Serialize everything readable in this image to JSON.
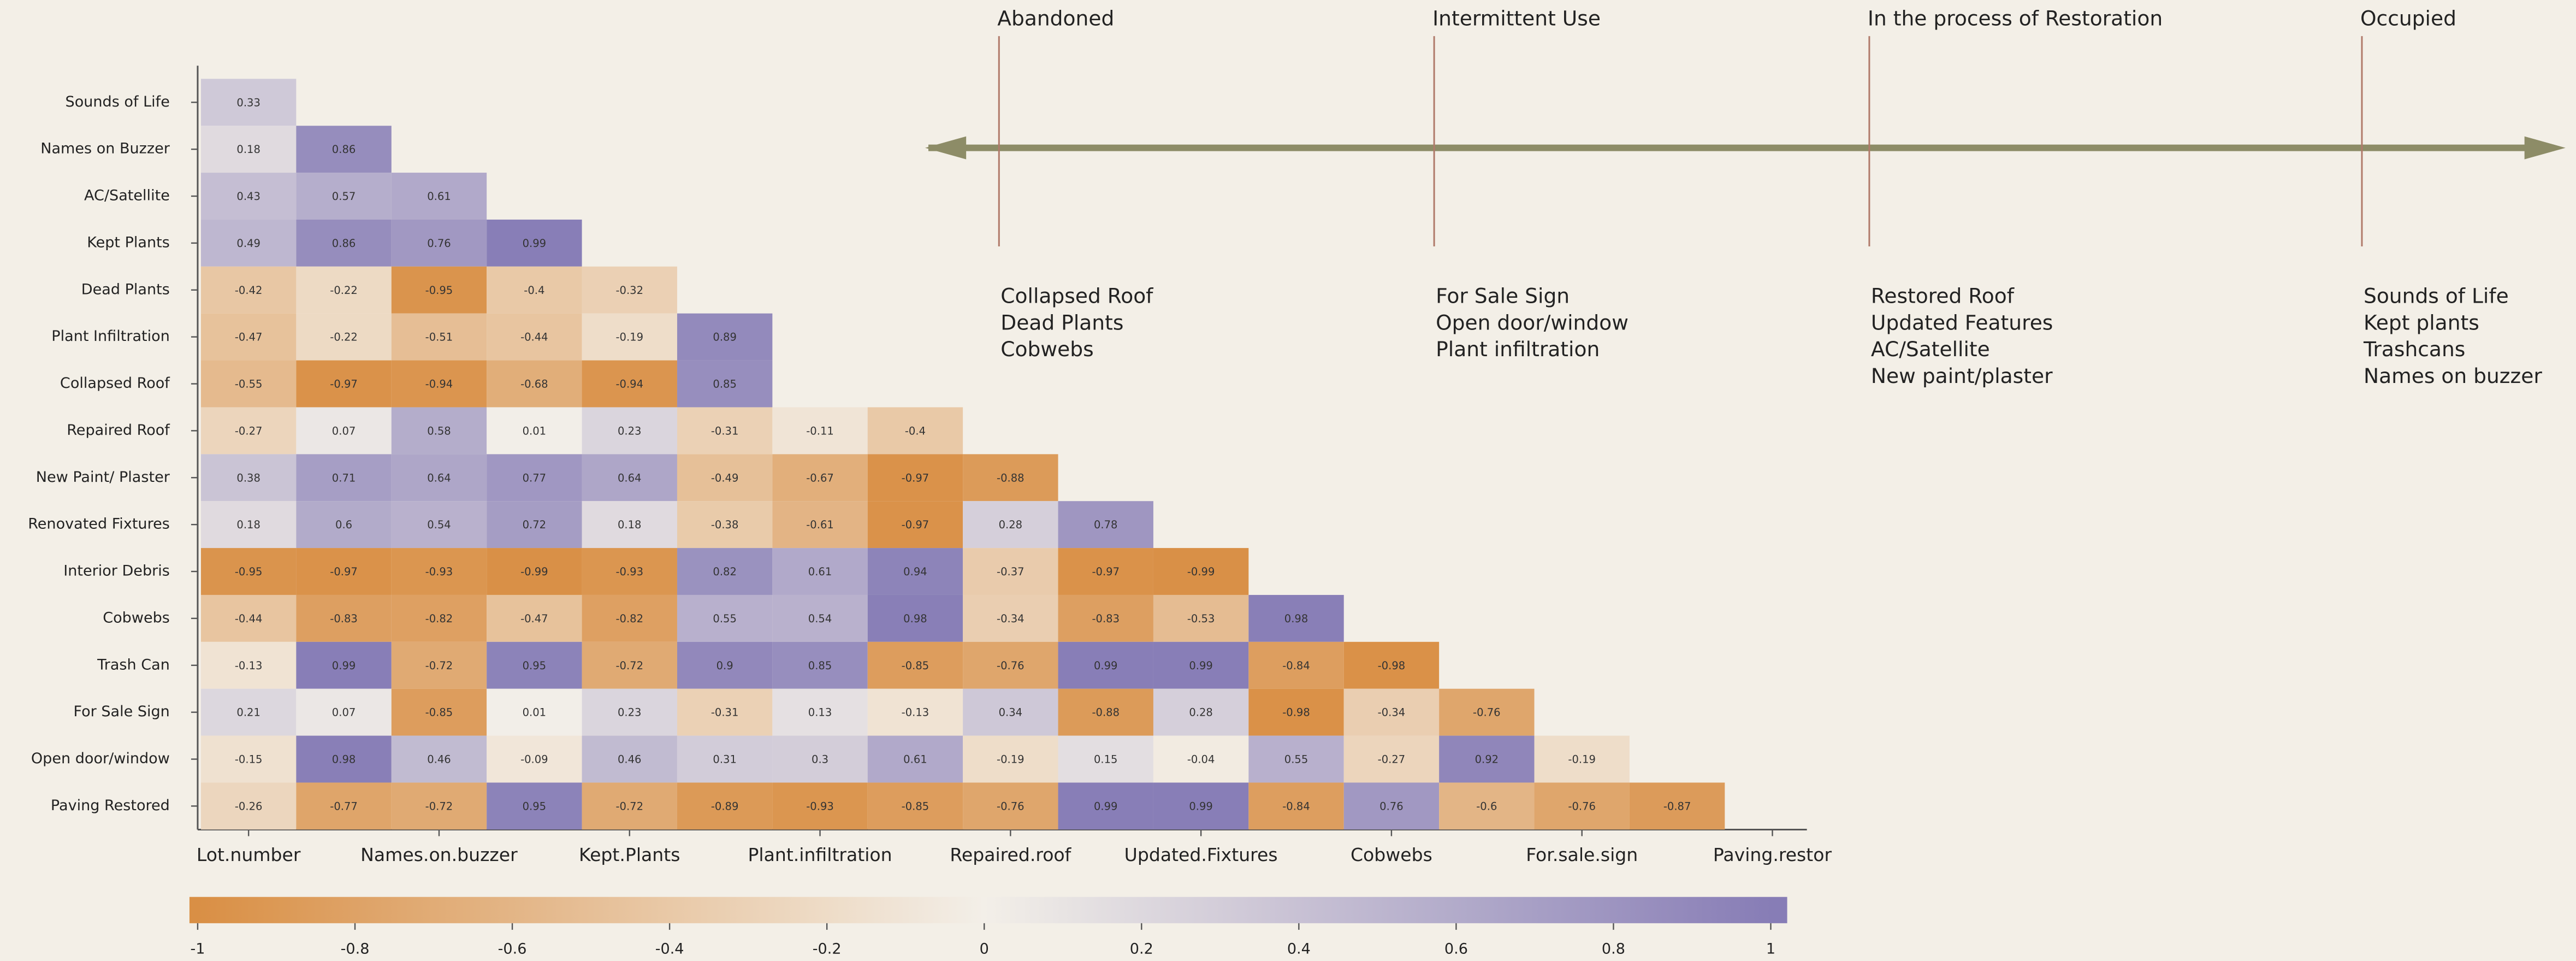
{
  "chart_data": {
    "type": "heatmap",
    "categories": [
      "Lot.number",
      null,
      "Names.on.buzzer",
      null,
      "Kept.Plants",
      null,
      "Plant.infiltration",
      null,
      "Repaired.roof",
      null,
      "Updated.Fixtures",
      null,
      "Cobwebs",
      null,
      "For.sale.sign",
      null,
      "Paving.restor"
    ],
    "y_categories": [
      "Sounds of Life",
      "Names on Buzzer",
      "AC/Satellite",
      "Kept Plants",
      "Dead Plants",
      "Plant Infiltration",
      "Collapsed Roof",
      "Repaired Roof",
      "New Paint/ Plaster",
      "Renovated  Fixtures",
      "Interior Debris",
      "Cobwebs",
      "Trash Can",
      "For Sale Sign",
      "Open door/window",
      "Paving Restored"
    ],
    "z": [
      [
        0.33,
        null,
        null,
        null,
        null,
        null,
        null,
        null,
        null,
        null,
        null,
        null,
        null,
        null,
        null,
        null,
        null
      ],
      [
        0.18,
        0.86,
        null,
        null,
        null,
        null,
        null,
        null,
        null,
        null,
        null,
        null,
        null,
        null,
        null,
        null,
        null
      ],
      [
        0.43,
        0.57,
        0.61,
        null,
        null,
        null,
        null,
        null,
        null,
        null,
        null,
        null,
        null,
        null,
        null,
        null,
        null
      ],
      [
        0.49,
        0.86,
        0.76,
        0.99,
        null,
        null,
        null,
        null,
        null,
        null,
        null,
        null,
        null,
        null,
        null,
        null,
        null
      ],
      [
        -0.42,
        -0.22,
        -0.95,
        -0.4,
        -0.32,
        null,
        null,
        null,
        null,
        null,
        null,
        null,
        null,
        null,
        null,
        null,
        null
      ],
      [
        -0.47,
        -0.22,
        -0.51,
        -0.44,
        -0.19,
        0.89,
        null,
        null,
        null,
        null,
        null,
        null,
        null,
        null,
        null,
        null,
        null
      ],
      [
        -0.55,
        -0.97,
        -0.94,
        -0.68,
        -0.94,
        0.85,
        null,
        null,
        null,
        null,
        null,
        null,
        null,
        null,
        null,
        null,
        null
      ],
      [
        -0.27,
        0.07,
        0.58,
        0.01,
        0.23,
        -0.31,
        -0.11,
        -0.4,
        null,
        null,
        null,
        null,
        null,
        null,
        null,
        null,
        null
      ],
      [
        0.38,
        0.71,
        0.64,
        0.77,
        0.64,
        -0.49,
        -0.67,
        -0.97,
        -0.88,
        null,
        null,
        null,
        null,
        null,
        null,
        null,
        null
      ],
      [
        0.18,
        0.6,
        0.54,
        0.72,
        0.18,
        -0.38,
        -0.61,
        -0.97,
        0.28,
        0.78,
        null,
        null,
        null,
        null,
        null,
        null,
        null
      ],
      [
        -0.95,
        -0.97,
        -0.93,
        -0.99,
        -0.93,
        0.82,
        0.61,
        0.94,
        -0.37,
        -0.97,
        -0.99,
        null,
        null,
        null,
        null,
        null,
        null
      ],
      [
        -0.44,
        -0.83,
        -0.82,
        -0.47,
        -0.82,
        0.55,
        0.54,
        0.98,
        -0.34,
        -0.83,
        -0.53,
        0.98,
        null,
        null,
        null,
        null,
        null
      ],
      [
        -0.13,
        0.99,
        -0.72,
        0.95,
        -0.72,
        0.9,
        0.85,
        -0.85,
        -0.76,
        0.99,
        0.99,
        -0.84,
        -0.98,
        null,
        null,
        null,
        null
      ],
      [
        0.21,
        0.07,
        -0.85,
        0.01,
        0.23,
        -0.31,
        0.13,
        -0.13,
        0.34,
        -0.88,
        0.28,
        -0.98,
        -0.34,
        -0.76,
        null,
        null,
        null
      ],
      [
        -0.15,
        0.98,
        0.46,
        -0.09,
        0.46,
        0.31,
        0.3,
        0.61,
        -0.19,
        0.15,
        -0.04,
        0.55,
        -0.27,
        0.92,
        -0.19,
        null,
        null
      ],
      [
        -0.26,
        -0.77,
        -0.72,
        0.95,
        -0.72,
        -0.89,
        -0.93,
        -0.85,
        -0.76,
        0.99,
        0.99,
        -0.84,
        0.76,
        -0.6,
        -0.76,
        -0.87,
        null
      ]
    ],
    "colorbar": {
      "lim": [
        -1,
        1
      ],
      "ticks": [
        -1,
        -0.8,
        -0.6,
        -0.4,
        -0.2,
        0,
        0.2,
        0.4,
        0.6,
        0.8,
        1
      ],
      "colors": [
        "#d98f45",
        "#f3efe8",
        "#877db6"
      ]
    }
  },
  "timeline": {
    "stages": [
      {
        "name": "Abandoned",
        "items": [
          "Collapsed Roof",
          "Dead Plants",
          "Cobwebs"
        ]
      },
      {
        "name": "Intermittent Use",
        "items": [
          "For Sale Sign",
          "Open door/window",
          "Plant infiltration"
        ]
      },
      {
        "name": "In the process of Restoration",
        "items": [
          "Restored Roof",
          "Updated Features",
          "AC/Satellite",
          "New paint/plaster"
        ]
      },
      {
        "name": "Occupied",
        "items": [
          "Sounds of Life",
          "Kept plants",
          "Trashcans",
          "Names on buzzer"
        ]
      }
    ]
  }
}
